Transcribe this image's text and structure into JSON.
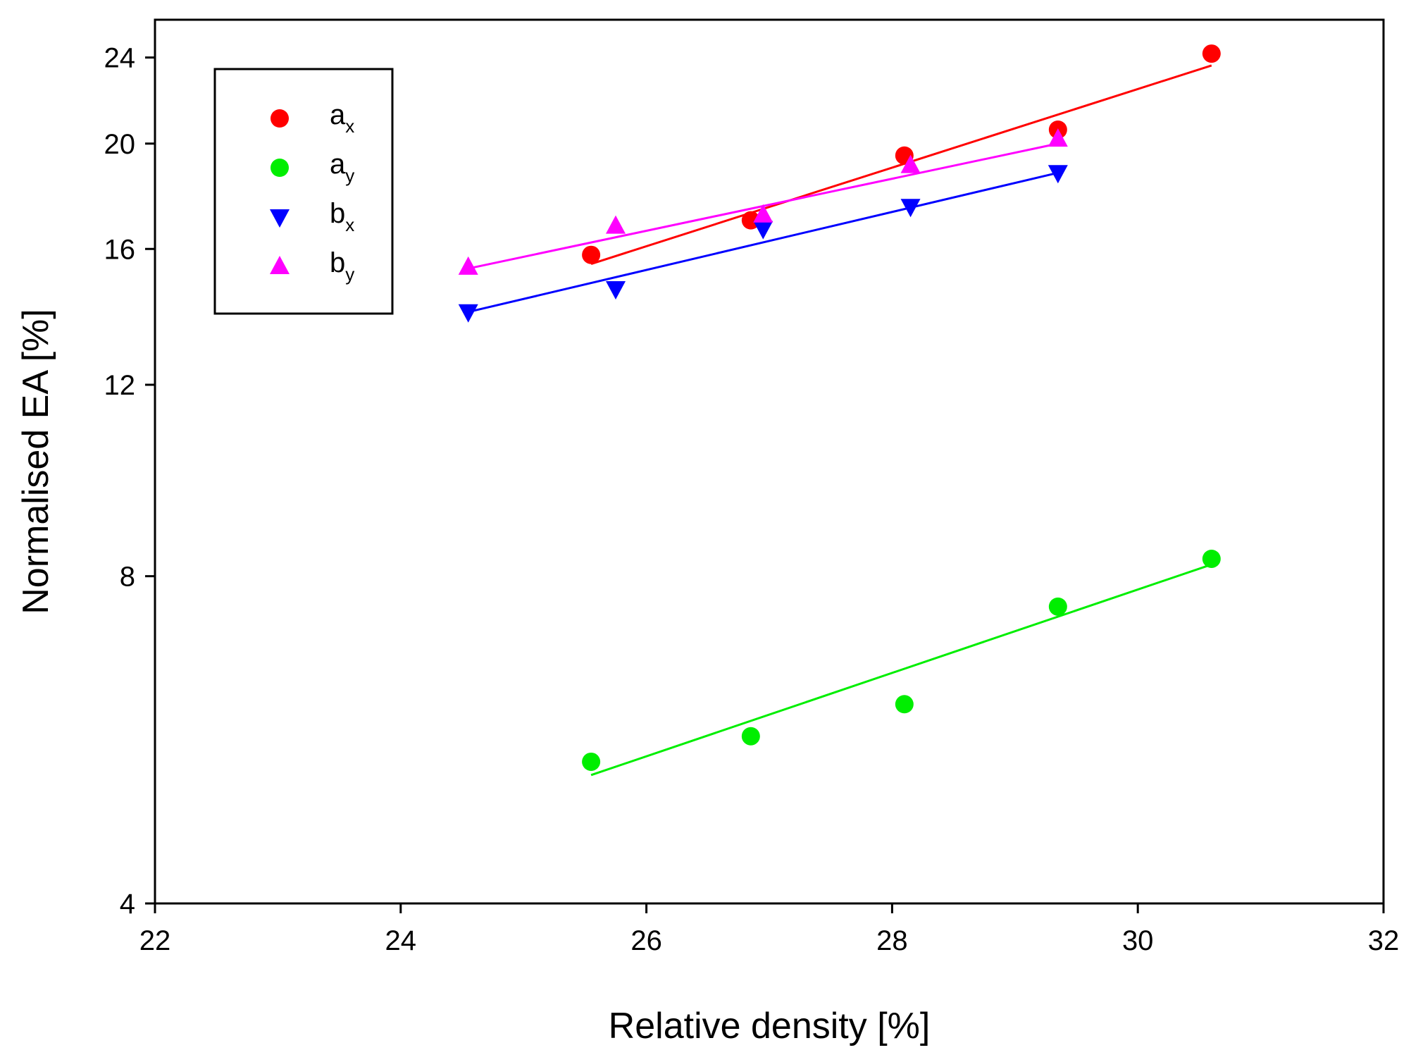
{
  "chart_data": {
    "type": "scatter",
    "title": "",
    "xlabel": "Relative density [%]",
    "ylabel": "Normalised EA [%]",
    "xlim": [
      22,
      32
    ],
    "ylim": [
      4,
      26
    ],
    "y_scale": "log",
    "x_ticks": [
      "22",
      "24",
      "26",
      "28",
      "30",
      "32"
    ],
    "y_ticks": [
      "4",
      "8",
      "12",
      "16",
      "20",
      "24"
    ],
    "legend_position": "top-left",
    "series": [
      {
        "name": "a",
        "sub": "x",
        "marker": "circle",
        "color": "#ff0000",
        "x": [
          25.55,
          26.85,
          28.1,
          29.35,
          30.6
        ],
        "y": [
          15.8,
          17.0,
          19.5,
          20.6,
          24.2
        ],
        "fit": {
          "x": [
            25.55,
            30.6
          ],
          "y": [
            15.5,
            23.6
          ]
        }
      },
      {
        "name": "a",
        "sub": "y",
        "marker": "circle",
        "color": "#00ee00",
        "x": [
          25.55,
          26.85,
          28.1,
          29.35,
          30.6
        ],
        "y": [
          5.4,
          5.7,
          6.1,
          7.5,
          8.3
        ],
        "fit": {
          "x": [
            25.55,
            30.6
          ],
          "y": [
            5.25,
            8.2
          ]
        }
      },
      {
        "name": "b",
        "sub": "x",
        "marker": "triangle-down",
        "color": "#0000ff",
        "x": [
          24.55,
          25.75,
          26.95,
          28.15,
          29.35
        ],
        "y": [
          14.0,
          14.7,
          16.7,
          17.5,
          18.8
        ],
        "fit": {
          "x": [
            24.55,
            29.35
          ],
          "y": [
            14.0,
            18.8
          ]
        }
      },
      {
        "name": "b",
        "sub": "y",
        "marker": "triangle-up",
        "color": "#ff00ff",
        "x": [
          24.55,
          25.75,
          26.95,
          28.15,
          29.35
        ],
        "y": [
          15.4,
          16.8,
          17.2,
          19.1,
          20.2
        ],
        "fit": {
          "x": [
            24.55,
            29.35
          ],
          "y": [
            15.35,
            20.0
          ]
        }
      }
    ]
  }
}
